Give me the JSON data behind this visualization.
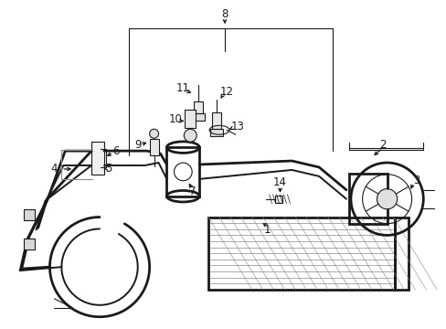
{
  "background_color": "#ffffff",
  "line_color": "#1a1a1a",
  "gray_color": "#888888",
  "light_gray": "#cccccc",
  "fig_width": 4.89,
  "fig_height": 3.6,
  "dpi": 100,
  "label_fontsize": 8.5
}
